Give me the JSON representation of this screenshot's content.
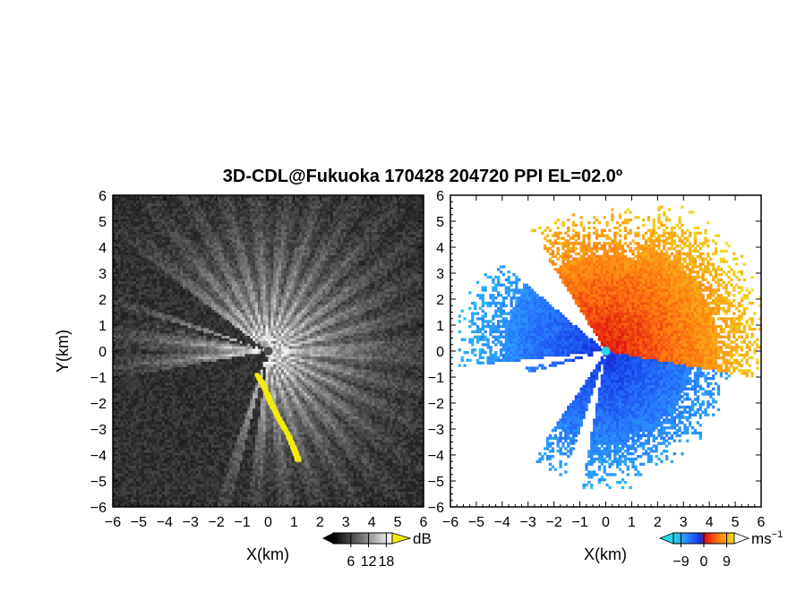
{
  "title": "3D-CDL@Fukuoka 170428 204720 PPI EL=02.0º",
  "colors": {
    "highlight_yellow": "#f2ec0a",
    "center_cyan": "#26d6e6",
    "left_background": "#2a2a2a",
    "right_background": "#ffffff"
  },
  "chart_data": [
    {
      "type": "heatmap",
      "name": "intensity-ppi",
      "xlabel": "X(km)",
      "ylabel": "Y(km)",
      "xlim": [
        -6,
        6
      ],
      "ylim": [
        -6,
        6
      ],
      "xticks": [
        "−6",
        "−5",
        "−4",
        "−3",
        "−2",
        "−1",
        "0",
        "1",
        "2",
        "3",
        "4",
        "5",
        "6"
      ],
      "yticks": [
        "6",
        "5",
        "4",
        "3",
        "2",
        "1",
        "0",
        "−1",
        "−2",
        "−3",
        "−4",
        "−5",
        "−6"
      ],
      "colorbar": {
        "unit": "dB",
        "ticks": [
          "6",
          "12",
          "18"
        ],
        "range": [
          0,
          20
        ],
        "extend": "both",
        "palette": "grayscale-to-yellow"
      },
      "dark_sectors_deg": [
        [
          143,
          160
        ],
        [
          163,
          167
        ],
        [
          190,
          250
        ],
        [
          256,
          262
        ]
      ],
      "yellow_band": {
        "note": "printed highlight region",
        "points_km": [
          [
            -0.45,
            -0.9
          ],
          [
            -0.2,
            -1.3
          ],
          [
            0.1,
            -2.0
          ],
          [
            0.4,
            -2.6
          ],
          [
            0.75,
            -3.2
          ],
          [
            1.0,
            -3.8
          ],
          [
            1.15,
            -4.2
          ]
        ]
      }
    },
    {
      "type": "heatmap",
      "name": "doppler-velocity-ppi",
      "xlabel": "X(km)",
      "ylabel": "",
      "xlim": [
        -6,
        6
      ],
      "ylim": [
        -6,
        6
      ],
      "xticks": [
        "−6",
        "−5",
        "−4",
        "−3",
        "−2",
        "−1",
        "0",
        "1",
        "2",
        "3",
        "4",
        "5",
        "6"
      ],
      "yticks": [
        "6",
        "5",
        "4",
        "3",
        "2",
        "1",
        "0",
        "−1",
        "−2",
        "−3",
        "−4",
        "−5",
        "−6"
      ],
      "colorbar": {
        "unit": "ms",
        "unit_exponent": "−1",
        "ticks": [
          "−9",
          "0",
          "9"
        ],
        "range": [
          -12,
          12
        ],
        "extend": "both",
        "palette": "cyan-blue-red-orange-yellow"
      },
      "data_sectors_deg": [
        {
          "from": -10,
          "to": 70,
          "max_range_km": 6.2,
          "sign": "positive"
        },
        {
          "from": 70,
          "to": 122,
          "max_range_km": 5.3,
          "sign": "positive"
        },
        {
          "from": -75,
          "to": -10,
          "max_range_km": 4.8,
          "sign": "negative"
        },
        {
          "from": 140,
          "to": 186,
          "max_range_km": 5.6,
          "sign": "negative"
        },
        {
          "from": 192,
          "to": 196,
          "max_range_km": 3.2,
          "sign": "negative"
        },
        {
          "from": 236,
          "to": 252,
          "max_range_km": 5.0,
          "sign": "negative"
        },
        {
          "from": 260,
          "to": 296,
          "max_range_km": 5.2,
          "sign": "negative"
        }
      ]
    }
  ]
}
